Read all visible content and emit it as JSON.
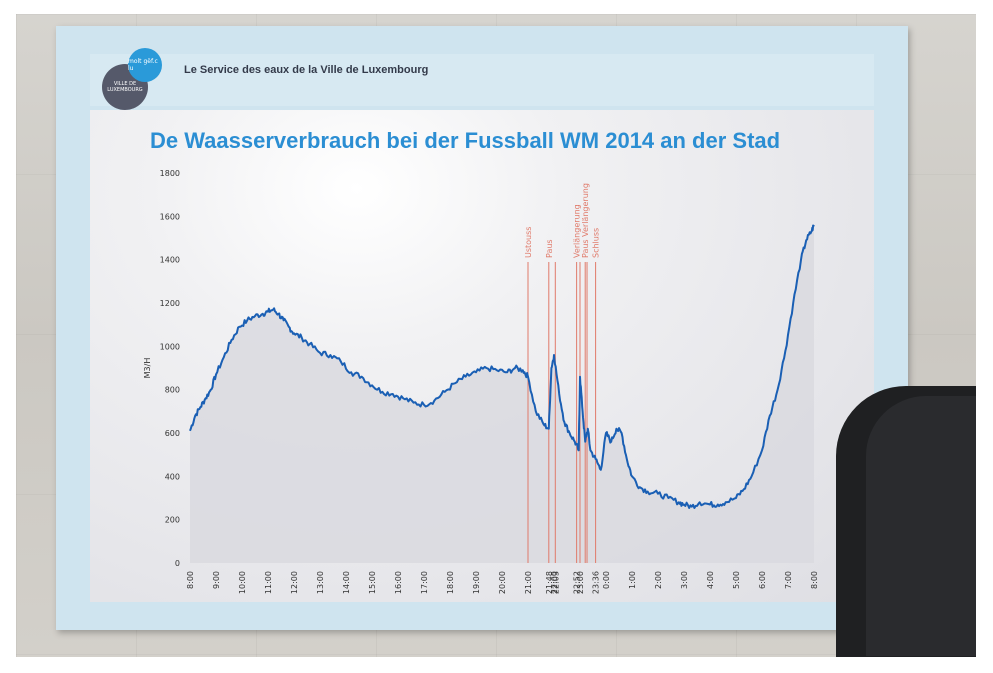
{
  "board": {
    "header": "Le Service des eaux de la Ville de Luxembourg",
    "logo_top": "molt gëf.c lu",
    "logo_bottom": "VILLE DE LUXEMBOURG",
    "logo_small": "www.vdl.lu"
  },
  "chart_data": {
    "type": "line",
    "title": "De Waasserverbrauch bei der Fussball WM 2014 an der Stad",
    "ylabel": "M3/H",
    "xlabel": "",
    "ylim": [
      0,
      1800
    ],
    "yticks": [
      0,
      200,
      400,
      600,
      800,
      1000,
      1200,
      1400,
      1600,
      1800
    ],
    "xrange": [
      8,
      32
    ],
    "xticks": [
      {
        "t": 8,
        "label": "8:00"
      },
      {
        "t": 9,
        "label": "9:00"
      },
      {
        "t": 10,
        "label": "10:00"
      },
      {
        "t": 11,
        "label": "11:00"
      },
      {
        "t": 12,
        "label": "12:00"
      },
      {
        "t": 13,
        "label": "13:00"
      },
      {
        "t": 14,
        "label": "14:00"
      },
      {
        "t": 15,
        "label": "15:00"
      },
      {
        "t": 16,
        "label": "16:00"
      },
      {
        "t": 17,
        "label": "17:00"
      },
      {
        "t": 18,
        "label": "18:00"
      },
      {
        "t": 19,
        "label": "19:00"
      },
      {
        "t": 20,
        "label": "20:00"
      },
      {
        "t": 21,
        "label": "21:00"
      },
      {
        "t": 21.8,
        "label": "21:48"
      },
      {
        "t": 22.0,
        "label": "22:00"
      },
      {
        "t": 22.05,
        "label": "22:03"
      },
      {
        "t": 22.87,
        "label": "22:52"
      },
      {
        "t": 23.0,
        "label": "23:00"
      },
      {
        "t": 23.6,
        "label": "23:36"
      },
      {
        "t": 24,
        "label": "0:00"
      },
      {
        "t": 25,
        "label": "1:00"
      },
      {
        "t": 26,
        "label": "2:00"
      },
      {
        "t": 27,
        "label": "3:00"
      },
      {
        "t": 28,
        "label": "4:00"
      },
      {
        "t": 29,
        "label": "5:00"
      },
      {
        "t": 30,
        "label": "6:00"
      },
      {
        "t": 31,
        "label": "7:00"
      },
      {
        "t": 32,
        "label": "8:00"
      }
    ],
    "events": [
      {
        "t": 21.0,
        "label": "Ustouss"
      },
      {
        "t": 21.8,
        "label": "Paus"
      },
      {
        "t": 22.05,
        "label": ""
      },
      {
        "t": 22.87,
        "label": "Verlängerung"
      },
      {
        "t": 23.0,
        "label": ""
      },
      {
        "t": 23.2,
        "label": "Paus Verlängerung"
      },
      {
        "t": 23.27,
        "label": ""
      },
      {
        "t": 23.6,
        "label": "Schluss"
      }
    ],
    "series": [
      {
        "name": "",
        "x": [
          8,
          8.2,
          8.4,
          8.6,
          8.8,
          9,
          9.3,
          9.6,
          9.9,
          10.2,
          10.5,
          10.8,
          11,
          11.2,
          11.4,
          11.6,
          11.8,
          12,
          12.3,
          12.6,
          13,
          13.4,
          13.8,
          14.2,
          14.6,
          15,
          15.4,
          15.8,
          16.2,
          16.6,
          17,
          17.4,
          17.8,
          18.2,
          18.6,
          19,
          19.4,
          19.8,
          20.2,
          20.5,
          20.8,
          21,
          21.3,
          21.6,
          21.8,
          21.9,
          22,
          22.2,
          22.4,
          22.6,
          22.8,
          22.95,
          23,
          23.1,
          23.2,
          23.3,
          23.4,
          23.6,
          23.8,
          24,
          24.2,
          24.4,
          24.6,
          24.8,
          25,
          25.3,
          25.6,
          26,
          26.4,
          26.8,
          27,
          27.3,
          27.6,
          28,
          28.3,
          28.6,
          29,
          29.3,
          29.6,
          30,
          30.3,
          30.6,
          30.9,
          31.2,
          31.5,
          31.7,
          31.9,
          32
        ],
        "values": [
          610,
          680,
          720,
          760,
          800,
          870,
          950,
          1030,
          1090,
          1120,
          1140,
          1150,
          1160,
          1170,
          1150,
          1120,
          1090,
          1060,
          1040,
          1010,
          970,
          960,
          930,
          880,
          860,
          820,
          790,
          780,
          760,
          740,
          730,
          750,
          790,
          830,
          860,
          880,
          900,
          890,
          880,
          900,
          890,
          860,
          700,
          640,
          620,
          900,
          960,
          780,
          650,
          600,
          560,
          520,
          860,
          700,
          560,
          620,
          520,
          480,
          430,
          600,
          560,
          620,
          600,
          480,
          400,
          350,
          330,
          320,
          300,
          280,
          270,
          260,
          280,
          270,
          270,
          280,
          300,
          340,
          400,
          520,
          680,
          800,
          980,
          1200,
          1400,
          1490,
          1530,
          1560
        ]
      }
    ]
  },
  "colors": {
    "line": "#1a5fb4",
    "area": "#d9d9df",
    "event": "#e07a6a",
    "title": "#2b8ed3",
    "axis_text": "#333333"
  }
}
